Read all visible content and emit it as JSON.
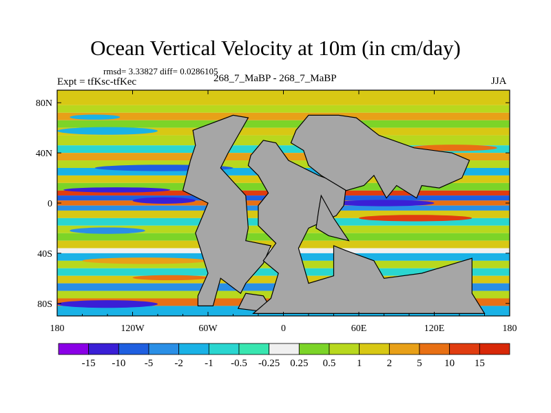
{
  "header": {
    "title": "Ocean Vertical Velocity at 10m (in cm/day)",
    "stats": "rmsd= 3.33827  diff= 0.0286105",
    "expt": "Expt = tfKsc-tfKec",
    "runs": "268_7_MaBP - 268_7_MaBP",
    "season": "JJA"
  },
  "chart_data": {
    "type": "heatmap",
    "title": "Ocean Vertical Velocity at 10m (in cm/day)",
    "variable": "vertical velocity difference",
    "units": "cm/day",
    "x_axis": {
      "range": [
        -180,
        180
      ],
      "ticks": [
        -180,
        -120,
        -60,
        0,
        60,
        120,
        180
      ],
      "tick_labels": [
        "180",
        "120W",
        "60W",
        "0",
        "60E",
        "120E",
        "180"
      ]
    },
    "y_axis": {
      "range": [
        -90,
        90
      ],
      "ticks": [
        80,
        40,
        0,
        -40,
        -80
      ],
      "tick_labels": [
        "80N",
        "40N",
        "0",
        "40S",
        "80S"
      ]
    },
    "colorbar": {
      "levels": [
        "-15",
        "-10",
        "-5",
        "-2",
        "-1",
        "-0.5",
        "-0.25",
        "0.25",
        "0.5",
        "1",
        "2",
        "5",
        "10",
        "15"
      ],
      "colors": [
        "#8a00e6",
        "#3a1fd6",
        "#1f5fe0",
        "#2a8fe6",
        "#1ab2e6",
        "#2ad6d0",
        "#38e6b0",
        "#f0f0f0",
        "#7cd428",
        "#b8d81e",
        "#d8c814",
        "#e8a018",
        "#e87014",
        "#e03c10",
        "#d82808"
      ]
    },
    "land_color": "#a6a6a6",
    "pattern": "zonal bands of alternating upwelling and downwelling; strongest signals near the equator and along the southern ocean"
  }
}
